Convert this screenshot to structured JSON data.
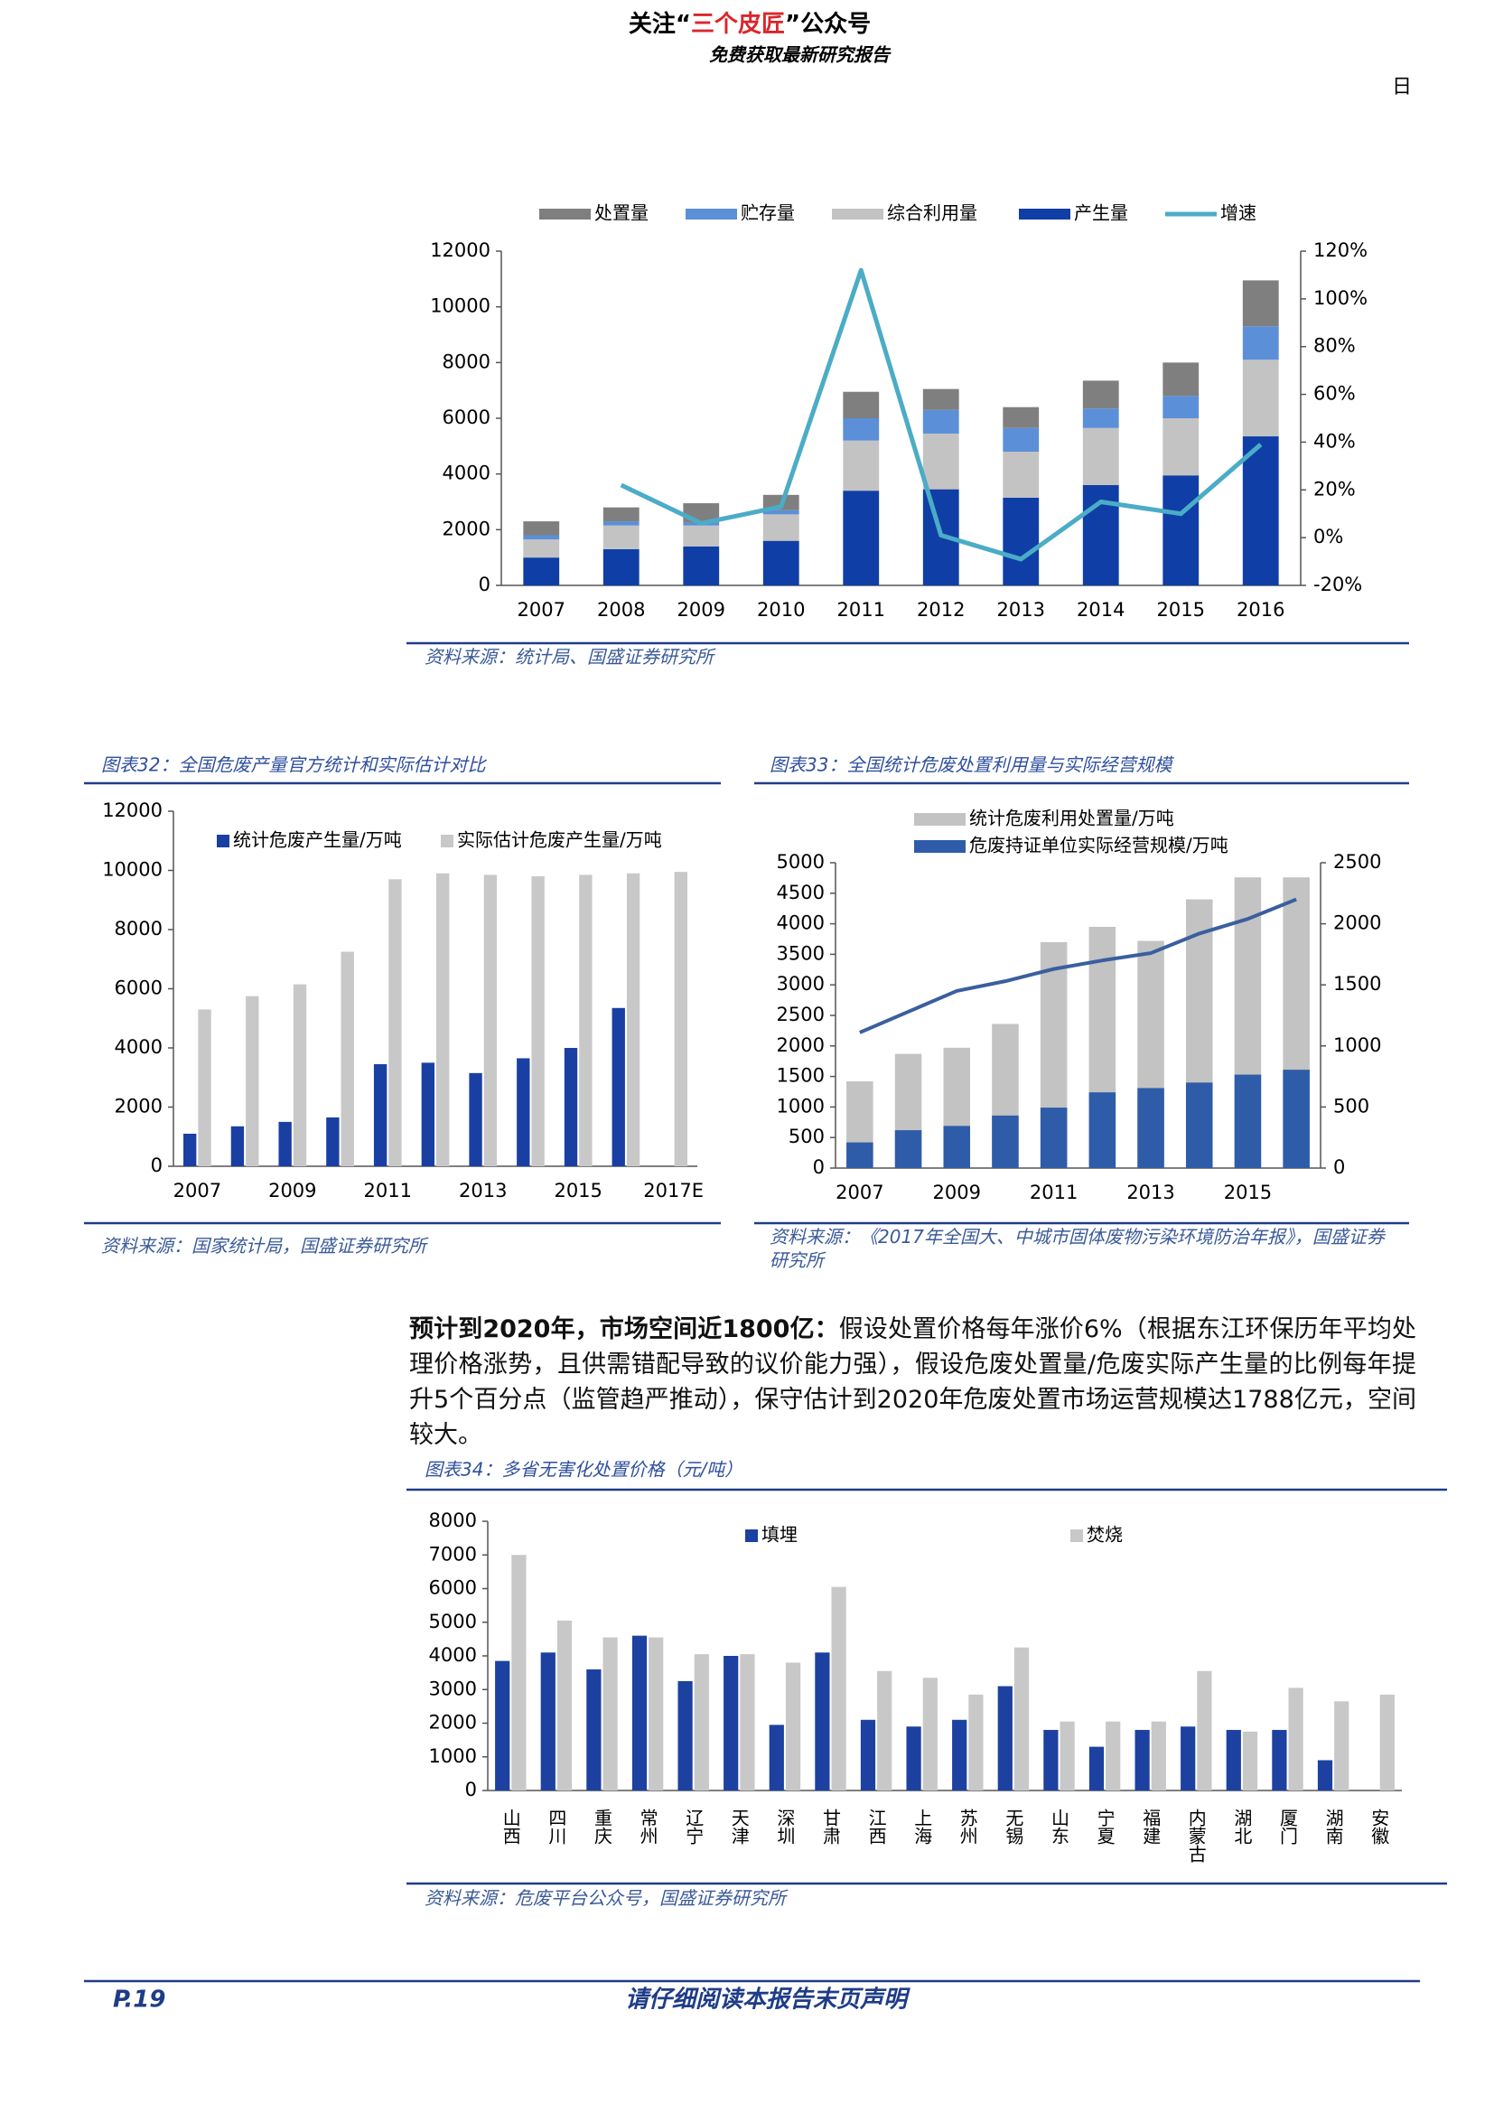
{
  "header": {
    "line1": [
      "关注“",
      "三个皮匠",
      "”公众号"
    ],
    "line2": "免费获取最新研究报告",
    "corner": "日"
  },
  "chart_data": [
    {
      "type": "bar",
      "stacked": true,
      "categories": [
        "2007",
        "2008",
        "2009",
        "2010",
        "2011",
        "2012",
        "2013",
        "2014",
        "2015",
        "2016"
      ],
      "series": [
        {
          "name": "处置量",
          "color": "#7f7f7f",
          "values": [
            500,
            500,
            700,
            550,
            950,
            750,
            750,
            1000,
            1200,
            1650
          ]
        },
        {
          "name": "贮存量",
          "color": "#5b8fd8",
          "values": [
            150,
            150,
            100,
            150,
            800,
            850,
            850,
            700,
            800,
            1200
          ]
        },
        {
          "name": "综合利用量",
          "color": "#c3c3c3",
          "values": [
            650,
            850,
            750,
            950,
            1800,
            2000,
            1650,
            2050,
            2050,
            2750
          ]
        },
        {
          "name": "产生量",
          "color": "#0f3fa6",
          "values": [
            1000,
            1300,
            1400,
            1600,
            3400,
            3450,
            3150,
            3600,
            3950,
            5350
          ]
        },
        {
          "name": "增速",
          "type": "line",
          "axis": "y2",
          "color": "#4bacc6",
          "values": [
            null,
            22,
            6,
            13,
            112,
            1,
            -9,
            15,
            10,
            39
          ]
        }
      ],
      "ylim": [
        0,
        12000
      ],
      "yticks": [
        0,
        2000,
        4000,
        6000,
        8000,
        10000,
        12000
      ],
      "y2lim": [
        -20,
        120
      ],
      "y2ticks": [
        {
          "value": -20,
          "label": "-20%"
        },
        {
          "value": 0,
          "label": "0%"
        },
        {
          "value": 20,
          "label": "20%"
        },
        {
          "value": 40,
          "label": "40%"
        },
        {
          "value": 60,
          "label": "60%"
        },
        {
          "value": 80,
          "label": "80%"
        },
        {
          "value": 100,
          "label": "100%"
        },
        {
          "value": 120,
          "label": "120%"
        }
      ],
      "source": "资料来源：统计局、国盛证券研究所"
    },
    {
      "type": "bar",
      "title": "图表32：全国危废产量官方统计和实际估计对比",
      "categories": [
        "2007",
        null,
        "2009",
        null,
        "2011",
        null,
        "2013",
        null,
        "2015",
        null,
        "2017E"
      ],
      "series": [
        {
          "name": "统计危废产生量/万吨",
          "color": "#1a3fa3",
          "values": [
            1100,
            1350,
            1500,
            1650,
            3450,
            3500,
            3150,
            3650,
            4000,
            5350,
            null
          ]
        },
        {
          "name": "实际估计危废产生量/万吨",
          "color": "#c8c8c8",
          "values": [
            5300,
            5750,
            6150,
            7250,
            9700,
            9900,
            9850,
            9800,
            9850,
            9900,
            9950
          ]
        }
      ],
      "ylim": [
        0,
        12000
      ],
      "yticks": [
        0,
        2000,
        4000,
        6000,
        8000,
        10000,
        12000
      ],
      "source": "资料来源：国家统计局，国盛证券研究所"
    },
    {
      "type": "bar",
      "bar_overlap": true,
      "title": "图表33：全国统计危废处置利用量与实际经营规模",
      "categories": [
        "2007",
        null,
        "2009",
        null,
        "2011",
        null,
        "2013",
        null,
        "2015",
        null
      ],
      "series": [
        {
          "name": "统计危废利用处置量/万吨",
          "color": "#c3c3c3",
          "values": [
            1420,
            1870,
            1970,
            2360,
            3700,
            3950,
            3720,
            4400,
            4760,
            4760
          ]
        },
        {
          "name": "危废持证单位实际经营规模/万吨",
          "color": "#2e5ca8",
          "values": [
            420,
            620,
            690,
            860,
            990,
            1240,
            1310,
            1400,
            1530,
            1610
          ]
        },
        {
          "type": "line",
          "axis": "y2",
          "color": "#3a5f9e",
          "values": [
            1110,
            1280,
            1450,
            1530,
            1630,
            1700,
            1760,
            1920,
            2040,
            2200
          ]
        }
      ],
      "ylim": [
        0,
        5000
      ],
      "yticks": [
        0,
        500,
        1000,
        1500,
        2000,
        2500,
        3000,
        3500,
        4000,
        4500,
        5000
      ],
      "y2lim": [
        0,
        2500
      ],
      "y2ticks": [
        0,
        500,
        1000,
        1500,
        2000,
        2500
      ],
      "source": "资料来源：《2017年全国大、中城市固体废物污染环境防治年报》，国盛证券研究所"
    },
    {
      "type": "bar",
      "title": "图表34：多省无害化处置价格（元/吨）",
      "categories": [
        "山西",
        "四川",
        "重庆",
        "常州",
        "辽宁",
        "天津",
        "深圳",
        "甘肃",
        "江西",
        "上海",
        "苏州",
        "无锡",
        "山东",
        "宁夏",
        "福建",
        "内蒙古",
        "湖北",
        "厦门",
        "湖南",
        "安徽"
      ],
      "series": [
        {
          "name": "填埋",
          "color": "#1c41a0",
          "values": [
            3850,
            4100,
            3600,
            4600,
            3250,
            4000,
            1950,
            4100,
            2100,
            1900,
            2100,
            3100,
            1800,
            1300,
            1800,
            1900,
            1800,
            1800,
            900,
            null
          ]
        },
        {
          "name": "焚烧",
          "color": "#c8c8c8",
          "values": [
            7000,
            5050,
            4550,
            4550,
            4050,
            4050,
            3800,
            6050,
            3550,
            3350,
            2850,
            4250,
            2050,
            2050,
            2050,
            3550,
            1750,
            3050,
            2650,
            2850
          ]
        }
      ],
      "ylim": [
        0,
        8000
      ],
      "yticks": [
        0,
        1000,
        2000,
        3000,
        4000,
        5000,
        6000,
        7000,
        8000
      ],
      "source": "资料来源：危废平台公众号，国盛证券研究所"
    }
  ],
  "paragraph": {
    "lead": "预计到2020年，市场空间近1800亿：",
    "text": "假设处置价格每年涨价6%（根据东江环保历年平均处理价格涨势，且供需错配导致的议价能力强），假设危废处置量/危废实际产生量的比例每年提升5个百分点（监管趋严推动），保守估计到2020年危废处置市场运营规模达1788亿元，空间较大。"
  },
  "footer": {
    "page": "P.19",
    "note": "请仔细阅读本报告末页声明"
  }
}
